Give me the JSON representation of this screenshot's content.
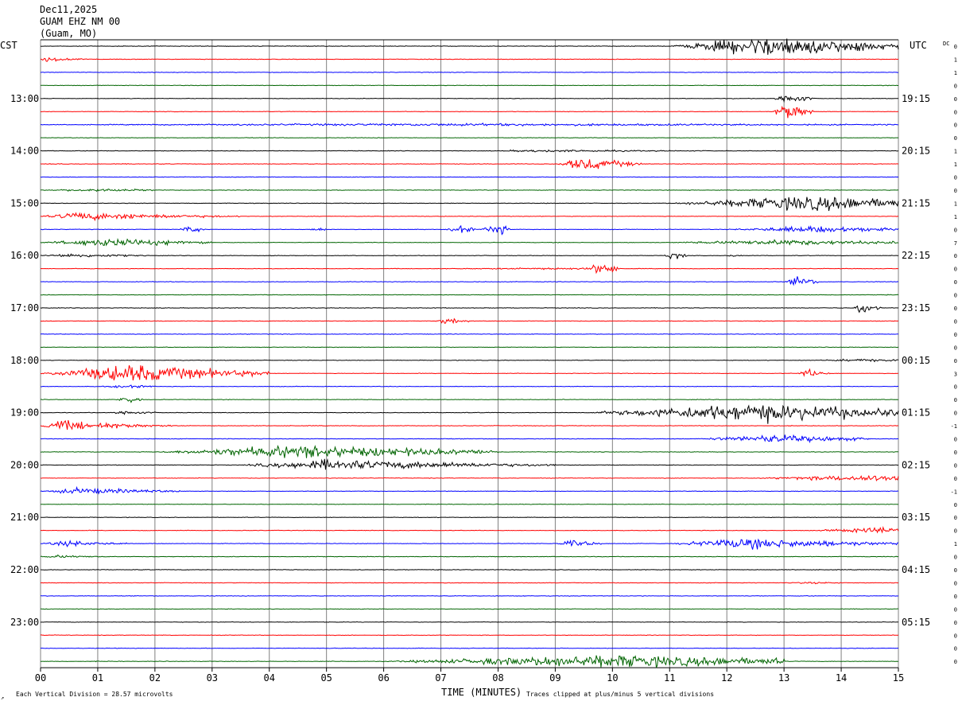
{
  "header": {
    "date": "Dec11,2025",
    "station": "GUAM EHZ NM 00",
    "location": "(Guam, MO)"
  },
  "left_timezone": "CST",
  "right_timezone": "UTC",
  "dc_label": "DC",
  "footer": {
    "vertical_division": "Each Vertical Division =   28.57 microvolts",
    "xlabel": "TIME (MINUTES)",
    "clip_note": "Traces clipped at plus/minus 5 vertical divisions",
    "corner_mark": "↗"
  },
  "colors": {
    "black": "#000000",
    "red": "#ff0000",
    "blue": "#0000ff",
    "green": "#006400",
    "grid": "#808080",
    "background": "#ffffff"
  },
  "chart_data": {
    "type": "line",
    "title": "",
    "xlabel": "TIME (MINUTES)",
    "ylabel": "",
    "xlim": [
      0,
      15
    ],
    "x_ticks": [
      "00",
      "01",
      "02",
      "03",
      "04",
      "05",
      "06",
      "07",
      "08",
      "09",
      "10",
      "11",
      "12",
      "13",
      "14",
      "15"
    ],
    "trace_color_cycle": [
      "black",
      "red",
      "blue",
      "green"
    ],
    "trace_count": 48,
    "left_hour_labels": [
      {
        "trace": 4,
        "text": "13:00"
      },
      {
        "trace": 8,
        "text": "14:00"
      },
      {
        "trace": 12,
        "text": "15:00"
      },
      {
        "trace": 16,
        "text": "16:00"
      },
      {
        "trace": 20,
        "text": "17:00"
      },
      {
        "trace": 24,
        "text": "18:00"
      },
      {
        "trace": 28,
        "text": "19:00"
      },
      {
        "trace": 32,
        "text": "20:00"
      },
      {
        "trace": 36,
        "text": "21:00"
      },
      {
        "trace": 40,
        "text": "22:00"
      },
      {
        "trace": 44,
        "text": "23:00"
      }
    ],
    "right_hour_labels": [
      {
        "trace": 4,
        "text": "19:15"
      },
      {
        "trace": 8,
        "text": "20:15"
      },
      {
        "trace": 12,
        "text": "21:15"
      },
      {
        "trace": 16,
        "text": "22:15"
      },
      {
        "trace": 20,
        "text": "23:15"
      },
      {
        "trace": 24,
        "text": "00:15"
      },
      {
        "trace": 28,
        "text": "01:15"
      },
      {
        "trace": 32,
        "text": "02:15"
      },
      {
        "trace": 36,
        "text": "03:15"
      },
      {
        "trace": 40,
        "text": "04:15"
      },
      {
        "trace": 44,
        "text": "05:15"
      }
    ],
    "dc_offsets": [
      "0",
      "1",
      "1",
      "0",
      "0",
      "0",
      "0",
      "0",
      "1",
      "1",
      "0",
      "0",
      "1",
      "1",
      "0",
      "7",
      "0",
      "0",
      "0",
      "0",
      "0",
      "0",
      "0",
      "0",
      "0",
      "3",
      "0",
      "0",
      "0",
      "-1",
      "0",
      "0",
      "0",
      "0",
      "-1",
      "0",
      "0",
      "0",
      "1",
      "0",
      "0",
      "0",
      "0",
      "0",
      "0",
      "0",
      "0",
      "0"
    ],
    "events": [
      {
        "trace": 0,
        "start": 11.0,
        "peak": 12.7,
        "end": 15.0,
        "amplitude": 4.0
      },
      {
        "trace": 1,
        "start": 0.0,
        "peak": 0.1,
        "end": 1.0,
        "amplitude": 0.8
      },
      {
        "trace": 4,
        "start": 12.8,
        "peak": 13.1,
        "end": 13.5,
        "amplitude": 2.0
      },
      {
        "trace": 5,
        "start": 12.8,
        "peak": 13.05,
        "end": 13.5,
        "amplitude": 3.5
      },
      {
        "trace": 6,
        "start": 0.0,
        "peak": 7.0,
        "end": 15.0,
        "amplitude": 0.4
      },
      {
        "trace": 8,
        "start": 8.0,
        "peak": 8.5,
        "end": 12.0,
        "amplitude": 0.4
      },
      {
        "trace": 9,
        "start": 9.0,
        "peak": 9.5,
        "end": 10.5,
        "amplitude": 2.5
      },
      {
        "trace": 11,
        "start": 0.0,
        "peak": 1.0,
        "end": 2.0,
        "amplitude": 0.5
      },
      {
        "trace": 12,
        "start": 11.0,
        "peak": 13.5,
        "end": 15.0,
        "amplitude": 3.0
      },
      {
        "trace": 13,
        "start": 0.0,
        "peak": 0.7,
        "end": 3.5,
        "amplitude": 1.5
      },
      {
        "trace": 14,
        "start": 2.4,
        "peak": 2.6,
        "end": 2.9,
        "amplitude": 1.2
      },
      {
        "trace": 14,
        "start": 4.7,
        "peak": 4.85,
        "end": 5.1,
        "amplitude": 0.8
      },
      {
        "trace": 14,
        "start": 7.1,
        "peak": 7.3,
        "end": 7.6,
        "amplitude": 1.5
      },
      {
        "trace": 14,
        "start": 7.7,
        "peak": 7.95,
        "end": 8.2,
        "amplitude": 2.5
      },
      {
        "trace": 14,
        "start": 12.0,
        "peak": 13.5,
        "end": 15.0,
        "amplitude": 1.2
      },
      {
        "trace": 15,
        "start": 0.0,
        "peak": 1.2,
        "end": 3.0,
        "amplitude": 1.5
      },
      {
        "trace": 15,
        "start": 11.0,
        "peak": 13.0,
        "end": 15.0,
        "amplitude": 1.0
      },
      {
        "trace": 16,
        "start": 0.0,
        "peak": 0.5,
        "end": 2.0,
        "amplitude": 0.7
      },
      {
        "trace": 16,
        "start": 10.9,
        "peak": 11.05,
        "end": 11.3,
        "amplitude": 1.5
      },
      {
        "trace": 16,
        "start": 12.0,
        "peak": 12.15,
        "end": 12.3,
        "amplitude": 0.6
      },
      {
        "trace": 17,
        "start": 7.0,
        "peak": 9.0,
        "end": 10.0,
        "amplitude": 0.3
      },
      {
        "trace": 17,
        "start": 9.6,
        "peak": 9.8,
        "end": 10.1,
        "amplitude": 3.0
      },
      {
        "trace": 18,
        "start": 13.0,
        "peak": 13.25,
        "end": 13.6,
        "amplitude": 1.8
      },
      {
        "trace": 20,
        "start": 14.2,
        "peak": 14.35,
        "end": 14.7,
        "amplitude": 2.5
      },
      {
        "trace": 21,
        "start": 6.9,
        "peak": 7.1,
        "end": 7.5,
        "amplitude": 1.4
      },
      {
        "trace": 24,
        "start": 13.5,
        "peak": 14.5,
        "end": 15.0,
        "amplitude": 0.5
      },
      {
        "trace": 25,
        "start": 0.0,
        "peak": 1.5,
        "end": 4.0,
        "amplitude": 3.5
      },
      {
        "trace": 25,
        "start": 13.2,
        "peak": 13.4,
        "end": 13.8,
        "amplitude": 1.5
      },
      {
        "trace": 26,
        "start": 1.0,
        "peak": 1.5,
        "end": 2.0,
        "amplitude": 0.5
      },
      {
        "trace": 27,
        "start": 1.3,
        "peak": 1.5,
        "end": 1.8,
        "amplitude": 1.5
      },
      {
        "trace": 28,
        "start": 1.2,
        "peak": 1.5,
        "end": 2.0,
        "amplitude": 0.8
      },
      {
        "trace": 28,
        "start": 9.5,
        "peak": 12.5,
        "end": 15.0,
        "amplitude": 3.5
      },
      {
        "trace": 29,
        "start": 0.0,
        "peak": 0.3,
        "end": 2.5,
        "amplitude": 2.0
      },
      {
        "trace": 30,
        "start": 11.5,
        "peak": 12.8,
        "end": 14.5,
        "amplitude": 1.5
      },
      {
        "trace": 31,
        "start": 2.0,
        "peak": 4.5,
        "end": 8.0,
        "amplitude": 2.5
      },
      {
        "trace": 32,
        "start": 3.5,
        "peak": 5.0,
        "end": 9.0,
        "amplitude": 2.0
      },
      {
        "trace": 33,
        "start": 12.5,
        "peak": 14.5,
        "end": 15.0,
        "amplitude": 1.2
      },
      {
        "trace": 34,
        "start": 0.0,
        "peak": 0.7,
        "end": 2.5,
        "amplitude": 1.2
      },
      {
        "trace": 37,
        "start": 13.5,
        "peak": 14.8,
        "end": 15.0,
        "amplitude": 1.2
      },
      {
        "trace": 38,
        "start": 0.0,
        "peak": 0.5,
        "end": 1.5,
        "amplitude": 1.0
      },
      {
        "trace": 38,
        "start": 9.0,
        "peak": 9.3,
        "end": 9.8,
        "amplitude": 1.3
      },
      {
        "trace": 38,
        "start": 11.0,
        "peak": 12.3,
        "end": 15.0,
        "amplitude": 2.0
      },
      {
        "trace": 39,
        "start": 0.0,
        "peak": 0.3,
        "end": 1.2,
        "amplitude": 0.5
      },
      {
        "trace": 41,
        "start": 13.0,
        "peak": 13.5,
        "end": 14.0,
        "amplitude": 0.3
      },
      {
        "trace": 47,
        "start": 6.0,
        "peak": 10.0,
        "end": 13.0,
        "amplitude": 2.5
      }
    ]
  }
}
